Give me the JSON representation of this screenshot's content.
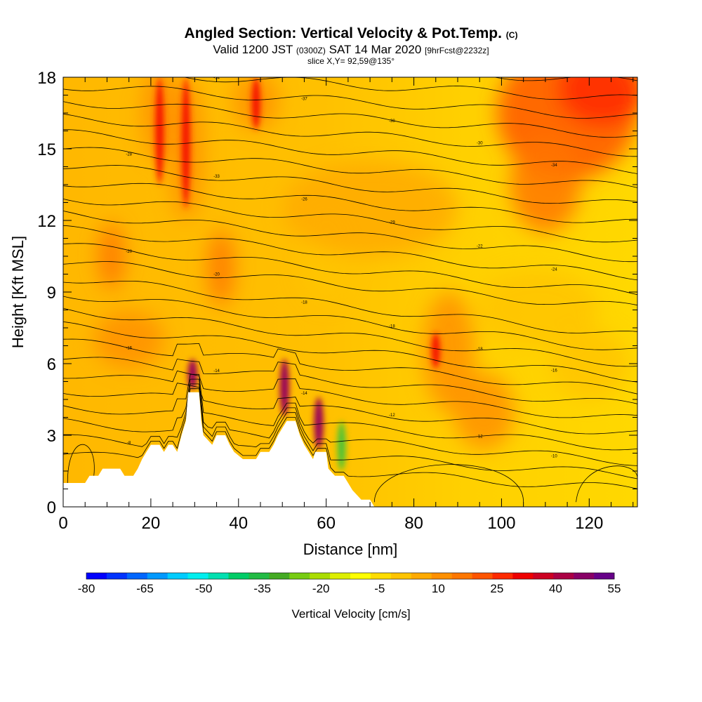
{
  "titles": {
    "main": "Angled Section: Vertical Velocity & Pot.Temp.",
    "main_unit": "(C)",
    "valid_prefix": "Valid 1200 JST",
    "valid_utc": "(0300Z)",
    "valid_date": "SAT 14 Mar 2020",
    "forecast": "[9hrFcst@2232z]",
    "slice": "slice X,Y= 92,59@135°"
  },
  "chart_data": {
    "type": "heatmap",
    "xlabel": "Distance [nm]",
    "ylabel": "Height [Kft MSL]",
    "xlim": [
      0,
      131
    ],
    "ylim": [
      0,
      18
    ],
    "x_ticks": [
      "0",
      "20",
      "40",
      "60",
      "80",
      "100",
      "120"
    ],
    "y_ticks": [
      "0",
      "3",
      "6",
      "9",
      "12",
      "15",
      "18"
    ],
    "colorbar": {
      "label": "Vertical Velocity [cm/s]",
      "tick_labels": [
        "-80",
        "-65",
        "-50",
        "-35",
        "-20",
        "-5",
        "10",
        "25",
        "40",
        "55"
      ],
      "colors": [
        "#0000ff",
        "#0033ff",
        "#0066ff",
        "#0099ff",
        "#00ccff",
        "#00eeee",
        "#00e0b0",
        "#00cc66",
        "#22bb44",
        "#44aa22",
        "#77cc11",
        "#aadd00",
        "#ddee00",
        "#ffff00",
        "#ffdd00",
        "#ffc400",
        "#ffaa00",
        "#ff9000",
        "#ff7700",
        "#ff5500",
        "#ff2a00",
        "#ee0000",
        "#cc0022",
        "#aa0044",
        "#880066",
        "#660088"
      ]
    },
    "terrain": [
      [
        0,
        1
      ],
      [
        5,
        1
      ],
      [
        6,
        1.3
      ],
      [
        8,
        1.3
      ],
      [
        9,
        1.6
      ],
      [
        13,
        1.6
      ],
      [
        14,
        1.3
      ],
      [
        16,
        1.3
      ],
      [
        17,
        1.6
      ],
      [
        18,
        2.0
      ],
      [
        19,
        2.3
      ],
      [
        20,
        2.6
      ],
      [
        22,
        2.6
      ],
      [
        23,
        2.3
      ],
      [
        24,
        2.6
      ],
      [
        25,
        2.6
      ],
      [
        26,
        2.3
      ],
      [
        27,
        3.0
      ],
      [
        28,
        3.6
      ],
      [
        28.5,
        4.8
      ],
      [
        31,
        4.8
      ],
      [
        31.5,
        3.6
      ],
      [
        32,
        3.0
      ],
      [
        34,
        2.6
      ],
      [
        35,
        3.0
      ],
      [
        37,
        3.0
      ],
      [
        38,
        2.6
      ],
      [
        39,
        2.3
      ],
      [
        41,
        2.0
      ],
      [
        44,
        2.0
      ],
      [
        45,
        2.3
      ],
      [
        47,
        2.3
      ],
      [
        48,
        2.6
      ],
      [
        49,
        3.0
      ],
      [
        50,
        3.3
      ],
      [
        51,
        3.6
      ],
      [
        53,
        3.6
      ],
      [
        54,
        3.0
      ],
      [
        55,
        2.6
      ],
      [
        56,
        2.3
      ],
      [
        57,
        2.0
      ],
      [
        57.5,
        2.3
      ],
      [
        60,
        2.3
      ],
      [
        60.5,
        1.6
      ],
      [
        62,
        1.3
      ],
      [
        64,
        1.3
      ],
      [
        65,
        1.0
      ],
      [
        66,
        0.7
      ],
      [
        68,
        0.3
      ],
      [
        70,
        0.3
      ],
      [
        71,
        0
      ],
      [
        131,
        0
      ]
    ],
    "isentrope_labels": [
      "-32",
      "-34",
      "-37",
      "-38",
      "-30",
      "-34",
      "-28",
      "-33",
      "-26",
      "-29",
      "-22",
      "-24",
      "-20",
      "-20",
      "-18",
      "-18",
      "-18",
      "-16",
      "-16",
      "-14",
      "-14",
      "-12",
      "-12",
      "-10",
      "-8",
      "-6"
    ],
    "updraft_cores": [
      {
        "x": 22,
        "ytop": 18,
        "ybot": 13.5,
        "w": 25
      },
      {
        "x": 28,
        "ytop": 18,
        "ybot": 12.5,
        "w": 25
      },
      {
        "x": 44,
        "ytop": 18,
        "ybot": 15.8,
        "w": 25
      },
      {
        "x": 29.5,
        "ytop": 6.2,
        "ybot": 4.9,
        "w": 40
      },
      {
        "x": 50.5,
        "ytop": 6.2,
        "ybot": 3.8,
        "w": 40
      },
      {
        "x": 58.3,
        "ytop": 4.6,
        "ybot": 2.4,
        "w": 40
      },
      {
        "x": 85,
        "ytop": 7.3,
        "ybot": 5.8,
        "w": 25
      }
    ],
    "downdraft_cores": [
      {
        "x": 63.5,
        "ytop": 3.6,
        "ybot": 1.5,
        "w": -25
      }
    ]
  }
}
